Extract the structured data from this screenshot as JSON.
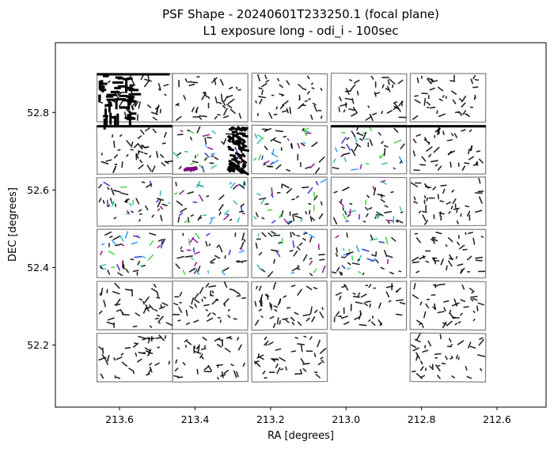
{
  "chart_data": {
    "type": "scatter",
    "title_line1": "PSF Shape - 20240601T233250.1 (focal plane)",
    "title_line2": "L1 exposure long - odi_i - 100sec",
    "xlabel": "RA [degrees]",
    "ylabel": "DEC [degrees]",
    "xlim": [
      213.77,
      212.47
    ],
    "ylim": [
      52.04,
      52.98
    ],
    "x_ticks": [
      213.6,
      213.4,
      213.2,
      213.0,
      212.8,
      212.6
    ],
    "x_tick_labels": [
      "213.6",
      "213.4",
      "213.2",
      "213.0",
      "212.8",
      "212.6"
    ],
    "y_ticks": [
      52.2,
      52.4,
      52.6,
      52.8
    ],
    "y_tick_labels": [
      "52.2",
      "52.4",
      "52.6",
      "52.8"
    ],
    "grid": false,
    "legend": "none",
    "ccd_columns_ra": [
      213.56,
      213.36,
      213.15,
      212.94,
      212.73
    ],
    "ccd_rows_dec": [
      52.838,
      52.704,
      52.57,
      52.436,
      52.302,
      52.168
    ],
    "ccd_width_ra": 0.2,
    "ccd_height_dec": 0.125,
    "missing_ccds": [
      [
        5,
        3
      ]
    ],
    "colors": {
      "frame": "#808080",
      "whisker_main": "#000000",
      "whisker_accents": [
        "#1f1fd0",
        "#1e90ff",
        "#800080",
        "#20b2aa",
        "#32cd32"
      ]
    },
    "whisker_count_per_ccd": 42
  }
}
